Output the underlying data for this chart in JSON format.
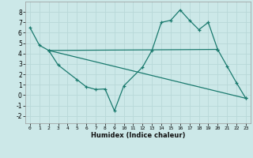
{
  "xlabel": "Humidex (Indice chaleur)",
  "bg_color": "#cce8e8",
  "line_color": "#1a7a6e",
  "grid_color": "#b8d8d8",
  "xlim": [
    -0.5,
    23.5
  ],
  "ylim": [
    -2.7,
    9.0
  ],
  "xticks": [
    0,
    1,
    2,
    3,
    4,
    5,
    6,
    7,
    8,
    9,
    10,
    11,
    12,
    13,
    14,
    15,
    16,
    17,
    18,
    19,
    20,
    21,
    22,
    23
  ],
  "yticks": [
    -2,
    -1,
    0,
    1,
    2,
    3,
    4,
    5,
    6,
    7,
    8
  ],
  "line1_x": [
    0,
    1,
    2,
    3,
    5,
    6,
    7,
    8,
    9,
    10,
    12,
    13,
    14,
    15,
    16,
    17,
    18,
    19,
    20,
    21,
    22,
    23
  ],
  "line1_y": [
    6.5,
    4.8,
    4.3,
    2.9,
    1.5,
    0.8,
    0.55,
    0.6,
    -1.5,
    0.9,
    2.7,
    4.3,
    7.0,
    7.2,
    8.2,
    7.2,
    6.3,
    7.0,
    4.4,
    2.8,
    1.2,
    -0.3
  ],
  "line2_x": [
    2,
    20
  ],
  "line2_y": [
    4.3,
    4.4
  ],
  "line3_x": [
    2,
    23
  ],
  "line3_y": [
    4.3,
    -0.3
  ]
}
